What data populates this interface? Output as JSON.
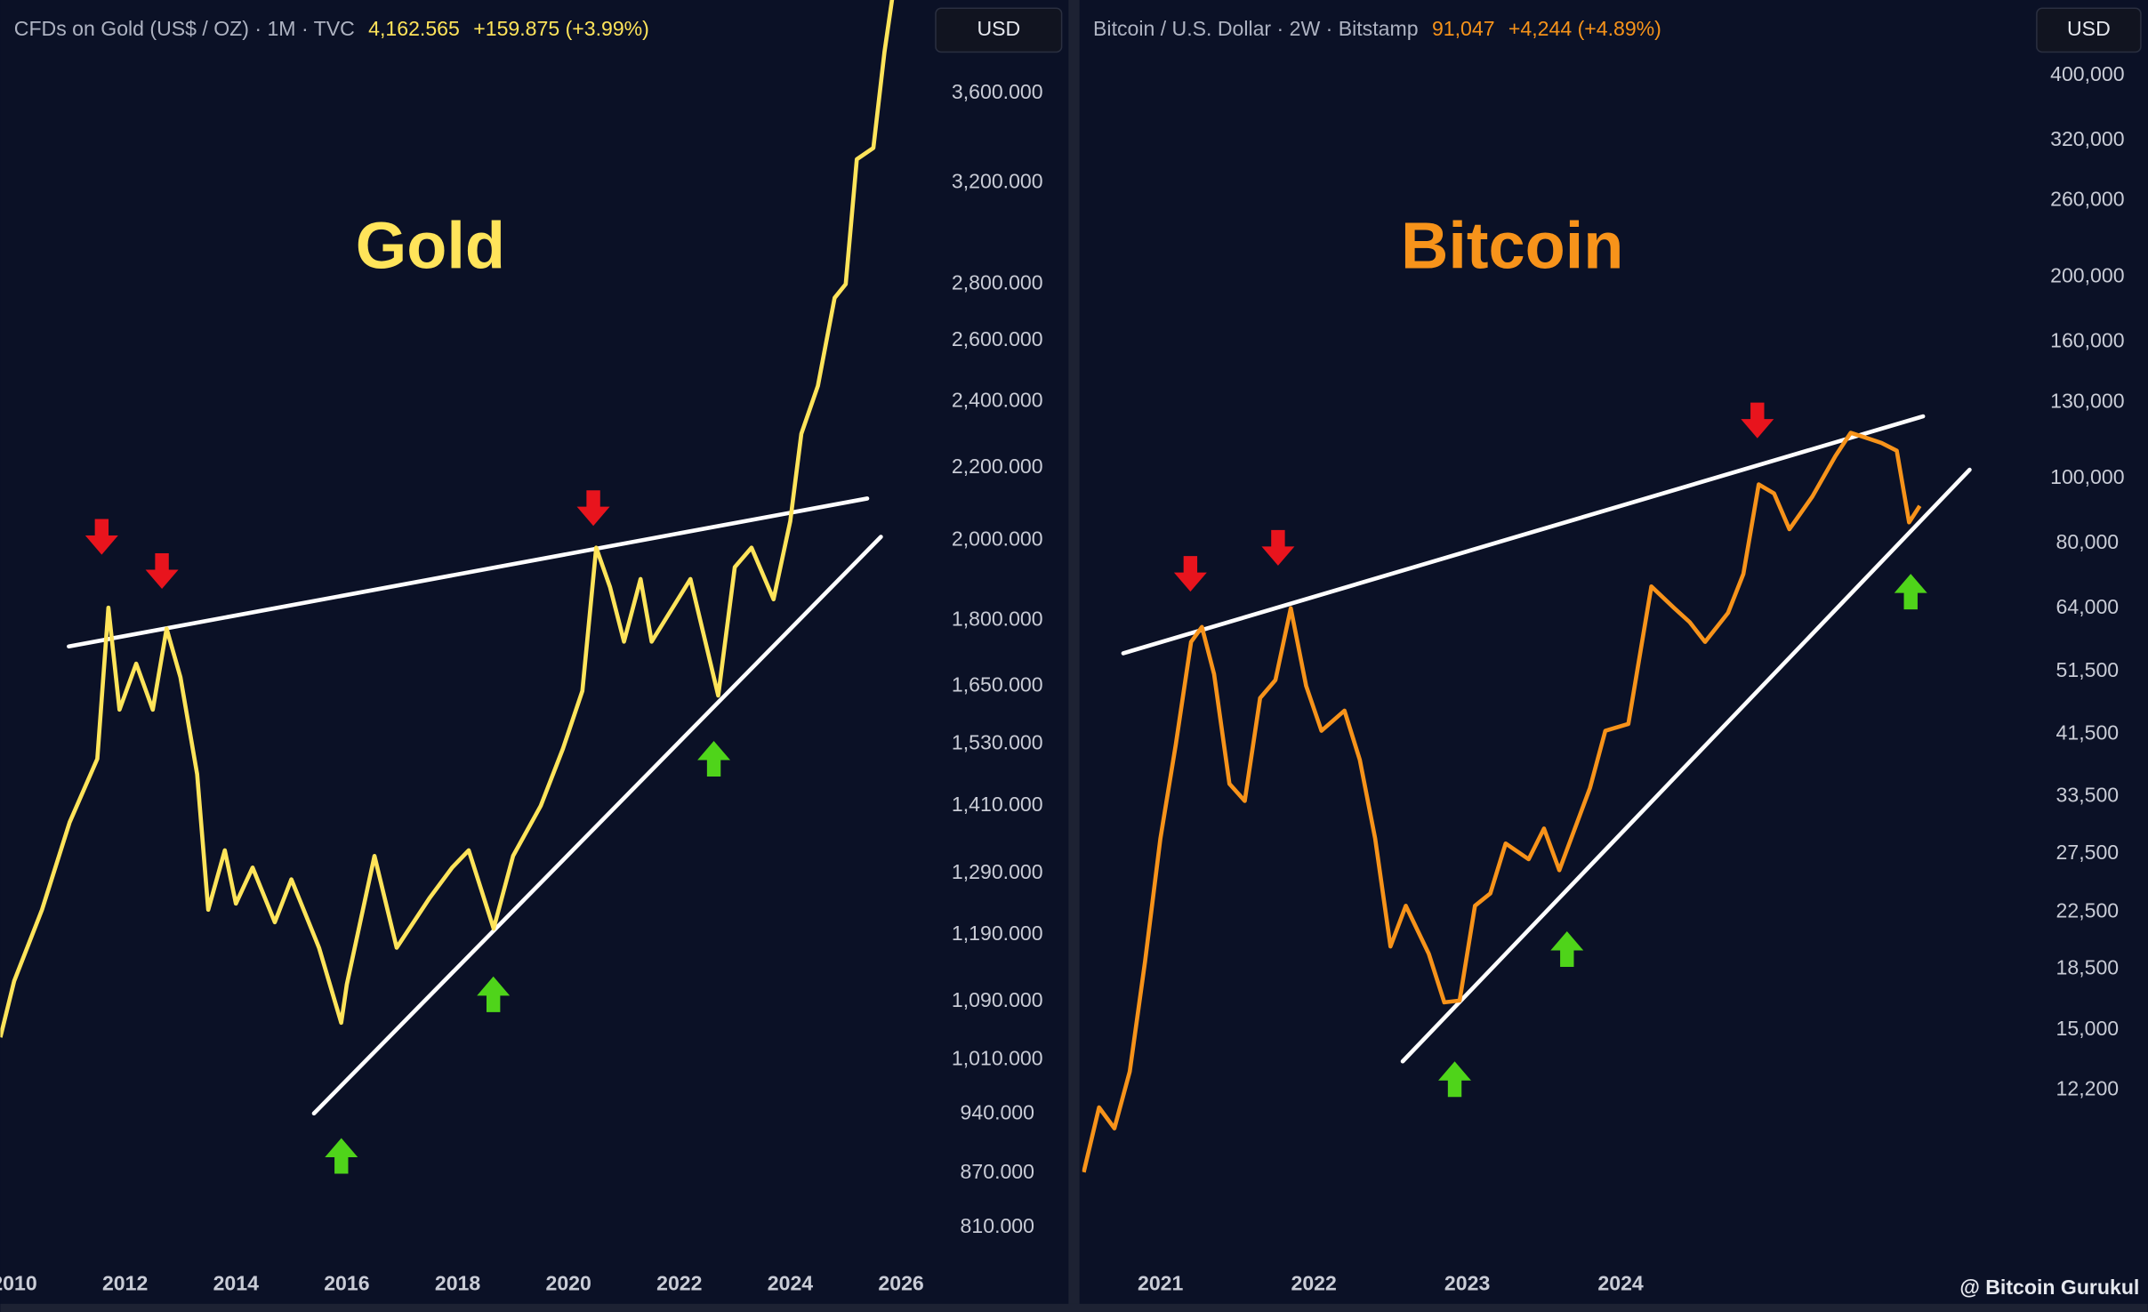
{
  "chart_data": [
    {
      "type": "line",
      "title": "Gold",
      "header": {
        "symbol": "CFDs on Gold (US$ / OZ) · 1M · TVC",
        "last": "4,162.565",
        "change": "+159.875 (+3.99%)",
        "currency": "USD"
      },
      "color": "#ffe45a",
      "log_scale": true,
      "x": [
        2009.75,
        2010.0,
        2010.5,
        2011.0,
        2011.5,
        2011.7,
        2011.9,
        2012.2,
        2012.5,
        2012.75,
        2013.0,
        2013.3,
        2013.5,
        2013.8,
        2014.0,
        2014.3,
        2014.7,
        2015.0,
        2015.5,
        2015.9,
        2016.0,
        2016.5,
        2016.9,
        2017.5,
        2017.9,
        2018.2,
        2018.65,
        2019.0,
        2019.5,
        2019.9,
        2020.25,
        2020.5,
        2020.75,
        2021.0,
        2021.3,
        2021.5,
        2022.2,
        2022.7,
        2023.0,
        2023.3,
        2023.7,
        2024.0,
        2024.2,
        2024.5,
        2024.8,
        2025.0,
        2025.2,
        2025.5,
        2025.7,
        2025.85
      ],
      "values": [
        1040,
        1120,
        1230,
        1380,
        1500,
        1830,
        1600,
        1700,
        1600,
        1780,
        1670,
        1470,
        1230,
        1330,
        1240,
        1300,
        1210,
        1280,
        1170,
        1060,
        1115,
        1320,
        1170,
        1250,
        1300,
        1330,
        1200,
        1320,
        1410,
        1520,
        1640,
        1980,
        1880,
        1750,
        1900,
        1750,
        1900,
        1630,
        1930,
        1980,
        1850,
        2050,
        2300,
        2450,
        2750,
        2800,
        3300,
        3350,
        3800,
        4100
      ],
      "xlim": [
        2009.75,
        2026.55
      ],
      "xticks": [
        2010,
        2012,
        2014,
        2016,
        2018,
        2020,
        2022,
        2024,
        2026
      ],
      "ylim": [
        776,
        4069
      ],
      "yticks": [
        {
          "value": 3600,
          "label": "3,600.000"
        },
        {
          "value": 3200,
          "label": "3,200.000"
        },
        {
          "value": 2800,
          "label": "2,800.000"
        },
        {
          "value": 2600,
          "label": "2,600.000"
        },
        {
          "value": 2400,
          "label": "2,400.000"
        },
        {
          "value": 2200,
          "label": "2,200.000"
        },
        {
          "value": 2000,
          "label": "2,000.000"
        },
        {
          "value": 1800,
          "label": "1,800.000"
        },
        {
          "value": 1650,
          "label": "1,650.000"
        },
        {
          "value": 1530,
          "label": "1,530.000"
        },
        {
          "value": 1410,
          "label": "1,410.000"
        },
        {
          "value": 1290,
          "label": "1,290.000"
        },
        {
          "value": 1190,
          "label": "1,190.000"
        },
        {
          "value": 1090,
          "label": "1,090.000"
        },
        {
          "value": 1010,
          "label": "1,010.000"
        },
        {
          "value": 940,
          "label": "940.000"
        },
        {
          "value": 870,
          "label": "870.000"
        },
        {
          "value": 810,
          "label": "810.000"
        }
      ]
    },
    {
      "type": "line",
      "title": "Bitcoin",
      "header": {
        "symbol": "Bitcoin / U.S. Dollar · 2W · Bitstamp",
        "last": "91,047",
        "change": "+4,244 (+4.89%)",
        "currency": "USD"
      },
      "color": "#f7931a",
      "log_scale": true,
      "x": [
        2020.5,
        2020.6,
        2020.7,
        2020.8,
        2020.9,
        2021.0,
        2021.1,
        2021.2,
        2021.27,
        2021.35,
        2021.45,
        2021.55,
        2021.65,
        2021.75,
        2021.85,
        2021.95,
        2022.05,
        2022.2,
        2022.3,
        2022.4,
        2022.5,
        2022.6,
        2022.75,
        2022.85,
        2022.95,
        2023.05,
        2023.15,
        2023.25,
        2023.4,
        2023.5,
        2023.6,
        2023.8,
        2023.9,
        2024.05,
        2024.2,
        2024.35,
        2024.45,
        2024.55,
        2024.7,
        2024.8,
        2024.9,
        2025.0,
        2025.1,
        2025.25,
        2025.4,
        2025.5,
        2025.6,
        2025.7,
        2025.8,
        2025.88,
        2025.95
      ],
      "values": [
        9200,
        11500,
        10700,
        13000,
        19000,
        29000,
        40000,
        57000,
        60000,
        51000,
        35000,
        33000,
        47000,
        50000,
        64000,
        49000,
        42000,
        45000,
        38000,
        29000,
        20000,
        23000,
        19500,
        16500,
        16600,
        23000,
        24000,
        28500,
        27000,
        30000,
        26000,
        34500,
        42000,
        43000,
        69000,
        64000,
        61000,
        57000,
        63000,
        72000,
        98000,
        95000,
        84000,
        94000,
        108000,
        117000,
        115000,
        113000,
        110000,
        86000,
        91000
      ],
      "xlim": [
        2020.49,
        2026.65
      ],
      "xticks": [
        2021,
        2022,
        2023,
        2024
      ],
      "ylim": [
        6804,
        518400
      ],
      "yticks": [
        {
          "value": 400000,
          "label": "400,000"
        },
        {
          "value": 320000,
          "label": "320,000"
        },
        {
          "value": 260000,
          "label": "260,000"
        },
        {
          "value": 200000,
          "label": "200,000"
        },
        {
          "value": 160000,
          "label": "160,000"
        },
        {
          "value": 130000,
          "label": "130,000"
        },
        {
          "value": 100000,
          "label": "100,000"
        },
        {
          "value": 80000,
          "label": "80,000"
        },
        {
          "value": 64000,
          "label": "64,000"
        },
        {
          "value": 51500,
          "label": "51,500"
        },
        {
          "value": 41500,
          "label": "41,500"
        },
        {
          "value": 33500,
          "label": "33,500"
        },
        {
          "value": 27500,
          "label": "27,500"
        },
        {
          "value": 22500,
          "label": "22,500"
        },
        {
          "value": 18500,
          "label": "18,500"
        },
        {
          "value": 15000,
          "label": "15,000"
        },
        {
          "value": 12200,
          "label": "12,200"
        }
      ]
    }
  ],
  "watermark": "@ Bitcoin Gurukul"
}
